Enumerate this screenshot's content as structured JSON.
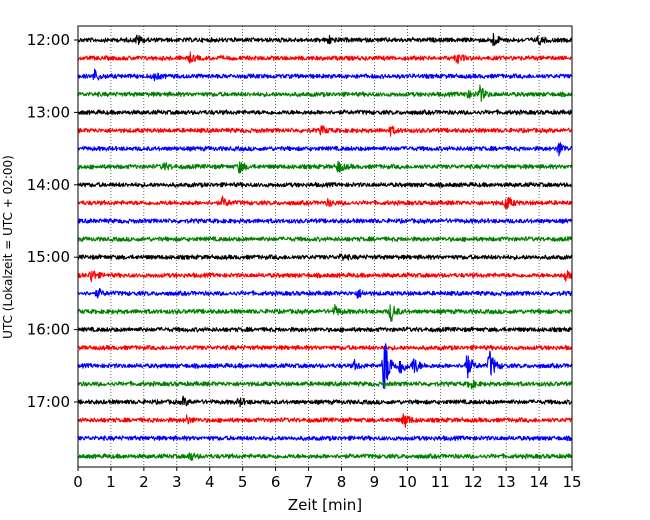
{
  "chart_data": {
    "type": "line",
    "title": "",
    "xlabel": "Zeit  [min]",
    "ylabel": "UTC (Lokalzeit = UTC + 02:00)",
    "xlim": [
      0,
      15
    ],
    "x_ticks": [
      "0",
      "1",
      "2",
      "3",
      "4",
      "5",
      "6",
      "7",
      "8",
      "9",
      "10",
      "11",
      "12",
      "13",
      "14",
      "15"
    ],
    "y_ticks": [
      "12:00",
      "13:00",
      "14:00",
      "15:00",
      "16:00",
      "17:00"
    ],
    "grid": "vertical dotted lines at each minute",
    "trace_interval_min": 15,
    "color_cycle": [
      "#000000",
      "#ff0000",
      "#0000ff",
      "#008000"
    ],
    "series": [
      {
        "start": "12:00",
        "color": "#000000",
        "events": [
          {
            "t": 1.8,
            "amp": 5
          },
          {
            "t": 7.6,
            "amp": 4
          },
          {
            "t": 12.6,
            "amp": 7
          },
          {
            "t": 14.0,
            "amp": 4
          }
        ]
      },
      {
        "start": "12:15",
        "color": "#ff0000",
        "events": [
          {
            "t": 3.4,
            "amp": 4
          },
          {
            "t": 11.5,
            "amp": 5
          }
        ]
      },
      {
        "start": "12:30",
        "color": "#0000ff",
        "events": [
          {
            "t": 0.5,
            "amp": 6
          },
          {
            "t": 2.3,
            "amp": 4
          }
        ]
      },
      {
        "start": "12:45",
        "color": "#008000",
        "events": [
          {
            "t": 12.2,
            "amp": 8
          },
          {
            "t": 11.8,
            "amp": 4
          }
        ]
      },
      {
        "start": "13:00",
        "color": "#000000",
        "events": []
      },
      {
        "start": "13:15",
        "color": "#ff0000",
        "events": [
          {
            "t": 7.4,
            "amp": 4
          },
          {
            "t": 9.5,
            "amp": 4
          }
        ]
      },
      {
        "start": "13:30",
        "color": "#0000ff",
        "events": [
          {
            "t": 14.6,
            "amp": 7
          }
        ]
      },
      {
        "start": "13:45",
        "color": "#008000",
        "events": [
          {
            "t": 2.6,
            "amp": 4
          },
          {
            "t": 4.9,
            "amp": 6
          },
          {
            "t": 7.9,
            "amp": 6
          }
        ]
      },
      {
        "start": "14:00",
        "color": "#000000",
        "events": []
      },
      {
        "start": "14:15",
        "color": "#ff0000",
        "events": [
          {
            "t": 4.4,
            "amp": 5
          },
          {
            "t": 7.6,
            "amp": 3
          },
          {
            "t": 13.0,
            "amp": 8
          }
        ]
      },
      {
        "start": "14:30",
        "color": "#0000ff",
        "events": []
      },
      {
        "start": "14:45",
        "color": "#008000",
        "events": []
      },
      {
        "start": "15:00",
        "color": "#000000",
        "events": [
          {
            "t": 8.0,
            "amp": 3
          }
        ]
      },
      {
        "start": "15:15",
        "color": "#ff0000",
        "events": [
          {
            "t": 0.4,
            "amp": 7
          },
          {
            "t": 14.8,
            "amp": 5
          }
        ]
      },
      {
        "start": "15:30",
        "color": "#0000ff",
        "events": [
          {
            "t": 0.6,
            "amp": 4
          },
          {
            "t": 8.5,
            "amp": 4
          }
        ]
      },
      {
        "start": "15:45",
        "color": "#008000",
        "events": [
          {
            "t": 7.8,
            "amp": 5
          },
          {
            "t": 9.5,
            "amp": 10
          }
        ]
      },
      {
        "start": "16:00",
        "color": "#000000",
        "events": []
      },
      {
        "start": "16:15",
        "color": "#ff0000",
        "events": []
      },
      {
        "start": "16:30",
        "color": "#0000ff",
        "events": [
          {
            "t": 8.4,
            "amp": 4
          },
          {
            "t": 9.3,
            "amp": 34
          },
          {
            "t": 9.8,
            "amp": 10
          },
          {
            "t": 10.2,
            "amp": 9
          },
          {
            "t": 11.8,
            "amp": 14
          },
          {
            "t": 12.5,
            "amp": 16
          }
        ]
      },
      {
        "start": "16:45",
        "color": "#008000",
        "events": [
          {
            "t": 11.9,
            "amp": 5
          }
        ]
      },
      {
        "start": "17:00",
        "color": "#000000",
        "events": [
          {
            "t": 3.2,
            "amp": 4
          },
          {
            "t": 4.9,
            "amp": 4
          }
        ]
      },
      {
        "start": "17:15",
        "color": "#ff0000",
        "events": [
          {
            "t": 3.3,
            "amp": 4
          },
          {
            "t": 9.9,
            "amp": 8
          }
        ]
      },
      {
        "start": "17:30",
        "color": "#0000ff",
        "events": []
      },
      {
        "start": "17:45",
        "color": "#008000",
        "events": [
          {
            "t": 3.4,
            "amp": 4
          }
        ]
      }
    ]
  }
}
